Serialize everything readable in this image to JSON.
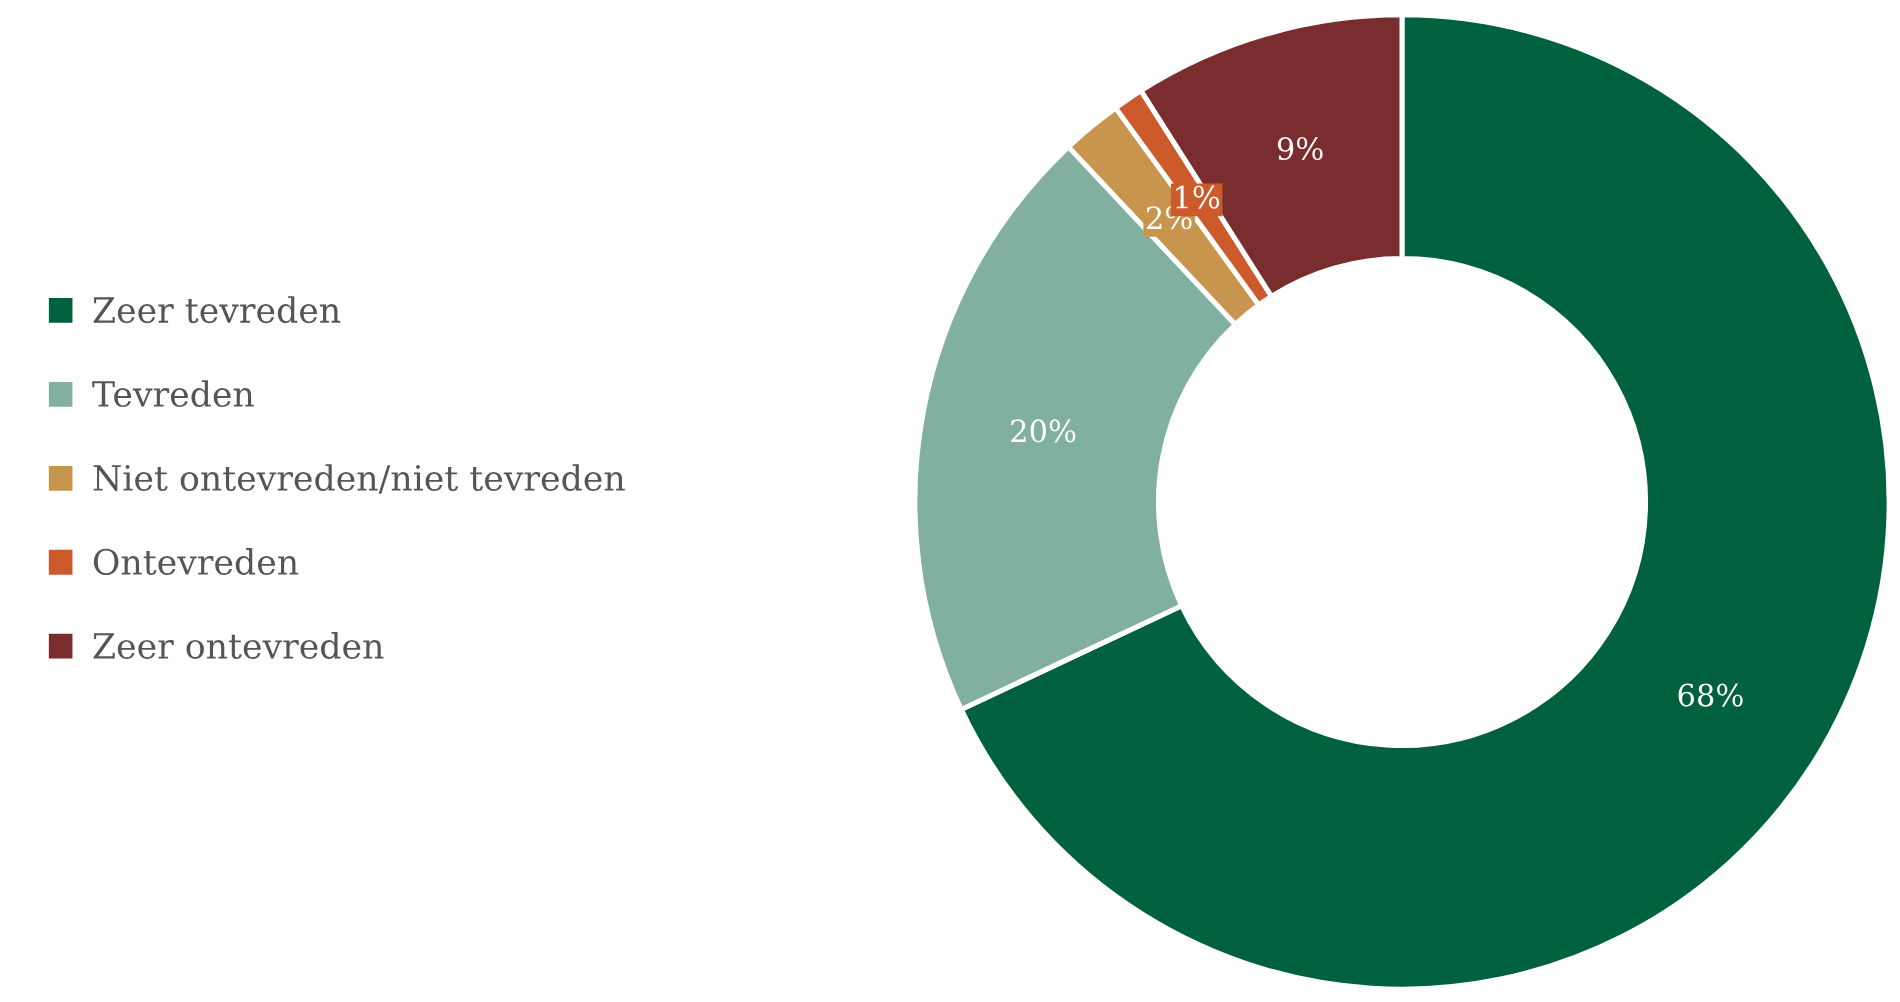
{
  "chart_data": {
    "type": "donut",
    "categories": [
      "Zeer tevreden",
      "Tevreden",
      "Niet ontevreden/niet tevreden",
      "Ontevreden",
      "Zeer ontevreden"
    ],
    "values": [
      68,
      20,
      2,
      1,
      9
    ],
    "colors": [
      "#00613f",
      "#82b0a0",
      "#c8954e",
      "#cc5a2a",
      "#7a2d2e"
    ],
    "value_labels": [
      "68%",
      "20%",
      "2%",
      "1%",
      "9%"
    ],
    "legend": "left"
  }
}
